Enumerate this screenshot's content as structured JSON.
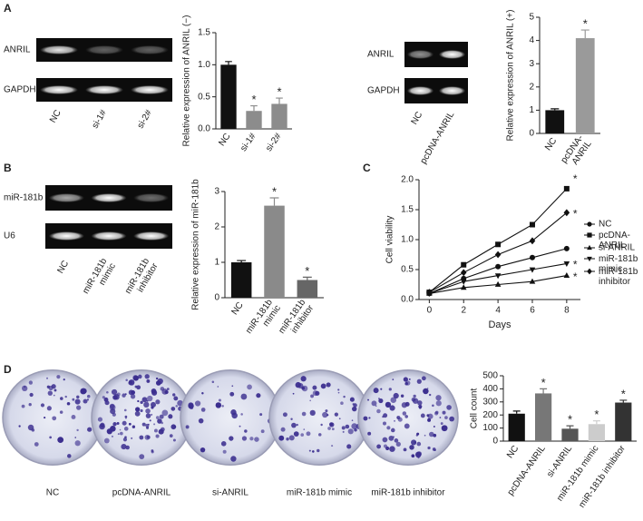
{
  "figure": {
    "panels": [
      "A",
      "B",
      "C",
      "D"
    ],
    "gels": [
      {
        "rows": [
          "ANRIL",
          "GAPDH"
        ],
        "lanes": [
          "NC",
          "si-1#",
          "si-2#"
        ]
      },
      {
        "rows": [
          "ANRIL",
          "GAPDH"
        ],
        "lanes": [
          "NC",
          "pcDNA-ANRIL"
        ]
      },
      {
        "rows": [
          "miR-181b",
          "U6"
        ],
        "lanes": [
          "NC",
          "miR-181b\nmimic",
          "miR-181b\ninhibitor"
        ]
      }
    ],
    "dishes": [
      "NC",
      "pcDNA-ANRIL",
      "si-ANRIL",
      "miR-181b mimic",
      "miR-181b inhibitor"
    ]
  },
  "chart_data": [
    {
      "type": "bar",
      "ylabel": "Relative expression of ANRIL (−)",
      "categories": [
        "NC",
        "si-1#",
        "si-2#"
      ],
      "values": [
        1.0,
        0.28,
        0.39
      ],
      "errors": [
        0.05,
        0.08,
        0.09
      ],
      "colors": [
        "#111111",
        "#8c8c8c",
        "#8c8c8c"
      ],
      "markers": [
        null,
        "*",
        "*"
      ],
      "ylim": [
        0,
        1.5
      ],
      "yticks": [
        {
          "value": 0,
          "label": "0.0"
        },
        0.5,
        {
          "value": 1,
          "label": "1.0"
        },
        1.5
      ]
    },
    {
      "type": "bar",
      "ylabel": "Relative expression of ANRIL (+)",
      "categories": [
        "NC",
        "pcDNA-\nANRIL"
      ],
      "values": [
        1.0,
        4.1
      ],
      "errors": [
        0.06,
        0.35
      ],
      "colors": [
        "#111111",
        "#9a9a9a"
      ],
      "markers": [
        null,
        "*"
      ],
      "ylim": [
        0,
        5
      ],
      "yticks": [
        0,
        1,
        2,
        3,
        4,
        5
      ]
    },
    {
      "type": "bar",
      "ylabel": "Relative expression of miR-181b",
      "categories": [
        "NC",
        "miR-181b\nmimic",
        "miR-181b\ninhibitor"
      ],
      "values": [
        1.0,
        2.6,
        0.5
      ],
      "errors": [
        0.05,
        0.22,
        0.08
      ],
      "colors": [
        "#111111",
        "#8a8a8a",
        "#666666"
      ],
      "markers": [
        null,
        "*",
        "*"
      ],
      "ylim": [
        0,
        3
      ],
      "yticks": [
        0,
        1,
        2,
        3
      ]
    },
    {
      "type": "line",
      "xlabel": "Days",
      "ylabel": "Cell viability",
      "x": [
        0,
        2,
        4,
        6,
        8
      ],
      "xlim": [
        -0.6,
        8.8
      ],
      "xticks": [
        0,
        2,
        4,
        6,
        8
      ],
      "ylim": [
        0,
        2
      ],
      "yticks": [
        {
          "value": 0,
          "label": "0.0"
        },
        0.5,
        {
          "value": 1,
          "label": "1.0"
        },
        1.5,
        {
          "value": 2,
          "label": "2.0"
        }
      ],
      "series": [
        {
          "name": "NC",
          "marker": "circle",
          "color": "#111111",
          "values": [
            0.1,
            0.35,
            0.55,
            0.7,
            0.85
          ],
          "markers": [
            null,
            null,
            null,
            null,
            null
          ]
        },
        {
          "name": "pcDNA-\nANRIL",
          "marker": "square",
          "color": "#111111",
          "values": [
            0.12,
            0.58,
            0.92,
            1.25,
            1.85
          ],
          "markers": [
            null,
            null,
            null,
            null,
            "*"
          ]
        },
        {
          "name": "si-ANRIL",
          "marker": "triangle-up",
          "color": "#111111",
          "values": [
            0.1,
            0.2,
            0.25,
            0.3,
            0.4
          ],
          "markers": [
            null,
            null,
            null,
            null,
            "*"
          ]
        },
        {
          "name": "miR-181b\nmimic",
          "marker": "triangle-down",
          "color": "#111111",
          "values": [
            0.1,
            0.3,
            0.4,
            0.5,
            0.6
          ],
          "markers": [
            null,
            null,
            null,
            null,
            "*"
          ]
        },
        {
          "name": "miR-181b\ninhibitor",
          "marker": "diamond",
          "color": "#111111",
          "values": [
            0.12,
            0.45,
            0.75,
            0.98,
            1.45
          ],
          "markers": [
            null,
            null,
            null,
            null,
            "*"
          ]
        }
      ]
    },
    {
      "type": "bar",
      "ylabel": "Cell count",
      "categories": [
        "NC",
        "pcDNA-ANRIL",
        "si-ANRIL",
        "miR-181b mimic",
        "miR-181b inhibitor"
      ],
      "values": [
        210,
        365,
        95,
        130,
        295
      ],
      "errors": [
        20,
        35,
        22,
        25,
        18
      ],
      "colors": [
        "#111111",
        "#777777",
        "#555555",
        "#cccccc",
        "#333333"
      ],
      "markers": [
        null,
        "*",
        "*",
        "*",
        "*"
      ],
      "ylim": [
        0,
        500
      ],
      "yticks": [
        0,
        100,
        200,
        300,
        400,
        500
      ]
    }
  ]
}
